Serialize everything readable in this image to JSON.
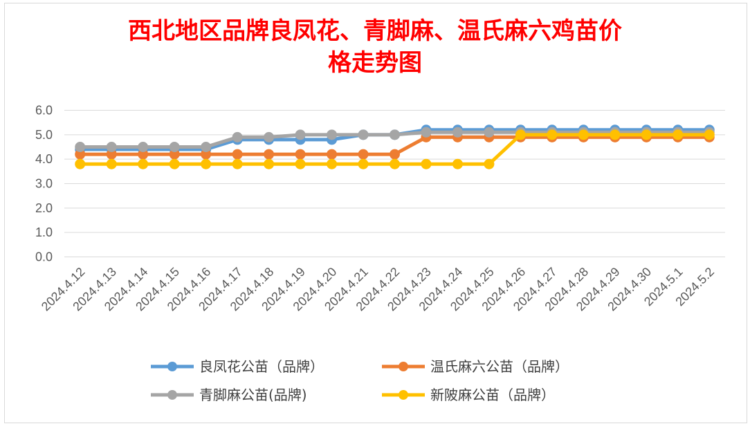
{
  "chart_data": {
    "type": "line",
    "title_line1": "西北地区品牌良凤花、青脚麻、温氏麻六鸡苗价",
    "title_line2": "格走势图",
    "categories": [
      "2024.4.12",
      "2024.4.13",
      "2024.4.14",
      "2024.4.15",
      "2024.4.16",
      "2024.4.17",
      "2024.4.18",
      "2024.4.19",
      "2024.4.20",
      "2024.4.21",
      "2024.4.22",
      "2024.4.23",
      "2024.4.24",
      "2024.4.25",
      "2024.4.26",
      "2024.4.27",
      "2024.4.28",
      "2024.4.29",
      "2024.4.30",
      "2024.5.1",
      "2024.5.2"
    ],
    "ylim": [
      0,
      6
    ],
    "yticks": [
      "0.0",
      "1.0",
      "2.0",
      "3.0",
      "4.0",
      "5.0",
      "6.0"
    ],
    "grid": true,
    "legend_position": "bottom",
    "series": [
      {
        "name": "良凤花公苗（品牌）",
        "color": "#5b9bd5",
        "values": [
          4.4,
          4.4,
          4.4,
          4.4,
          4.4,
          4.8,
          4.8,
          4.8,
          4.8,
          5.0,
          5.0,
          5.2,
          5.2,
          5.2,
          5.2,
          5.2,
          5.2,
          5.2,
          5.2,
          5.2,
          5.2
        ]
      },
      {
        "name": "温氏麻六公苗（品牌）",
        "color": "#ed7d31",
        "values": [
          4.2,
          4.2,
          4.2,
          4.2,
          4.2,
          4.2,
          4.2,
          4.2,
          4.2,
          4.2,
          4.2,
          4.9,
          4.9,
          4.9,
          4.9,
          4.9,
          4.9,
          4.9,
          4.9,
          4.9,
          4.9
        ]
      },
      {
        "name": "青脚麻公苗(品牌)",
        "color": "#a5a5a5",
        "values": [
          4.5,
          4.5,
          4.5,
          4.5,
          4.5,
          4.9,
          4.9,
          5.0,
          5.0,
          5.0,
          5.0,
          5.1,
          5.1,
          5.1,
          5.1,
          5.1,
          5.1,
          5.1,
          5.1,
          5.1,
          5.1
        ]
      },
      {
        "name": "新陂麻公苗（品牌）",
        "color": "#ffc000",
        "values": [
          3.8,
          3.8,
          3.8,
          3.8,
          3.8,
          3.8,
          3.8,
          3.8,
          3.8,
          3.8,
          3.8,
          3.8,
          3.8,
          3.8,
          5.0,
          5.0,
          5.0,
          5.0,
          5.0,
          5.0,
          5.0
        ]
      }
    ]
  }
}
